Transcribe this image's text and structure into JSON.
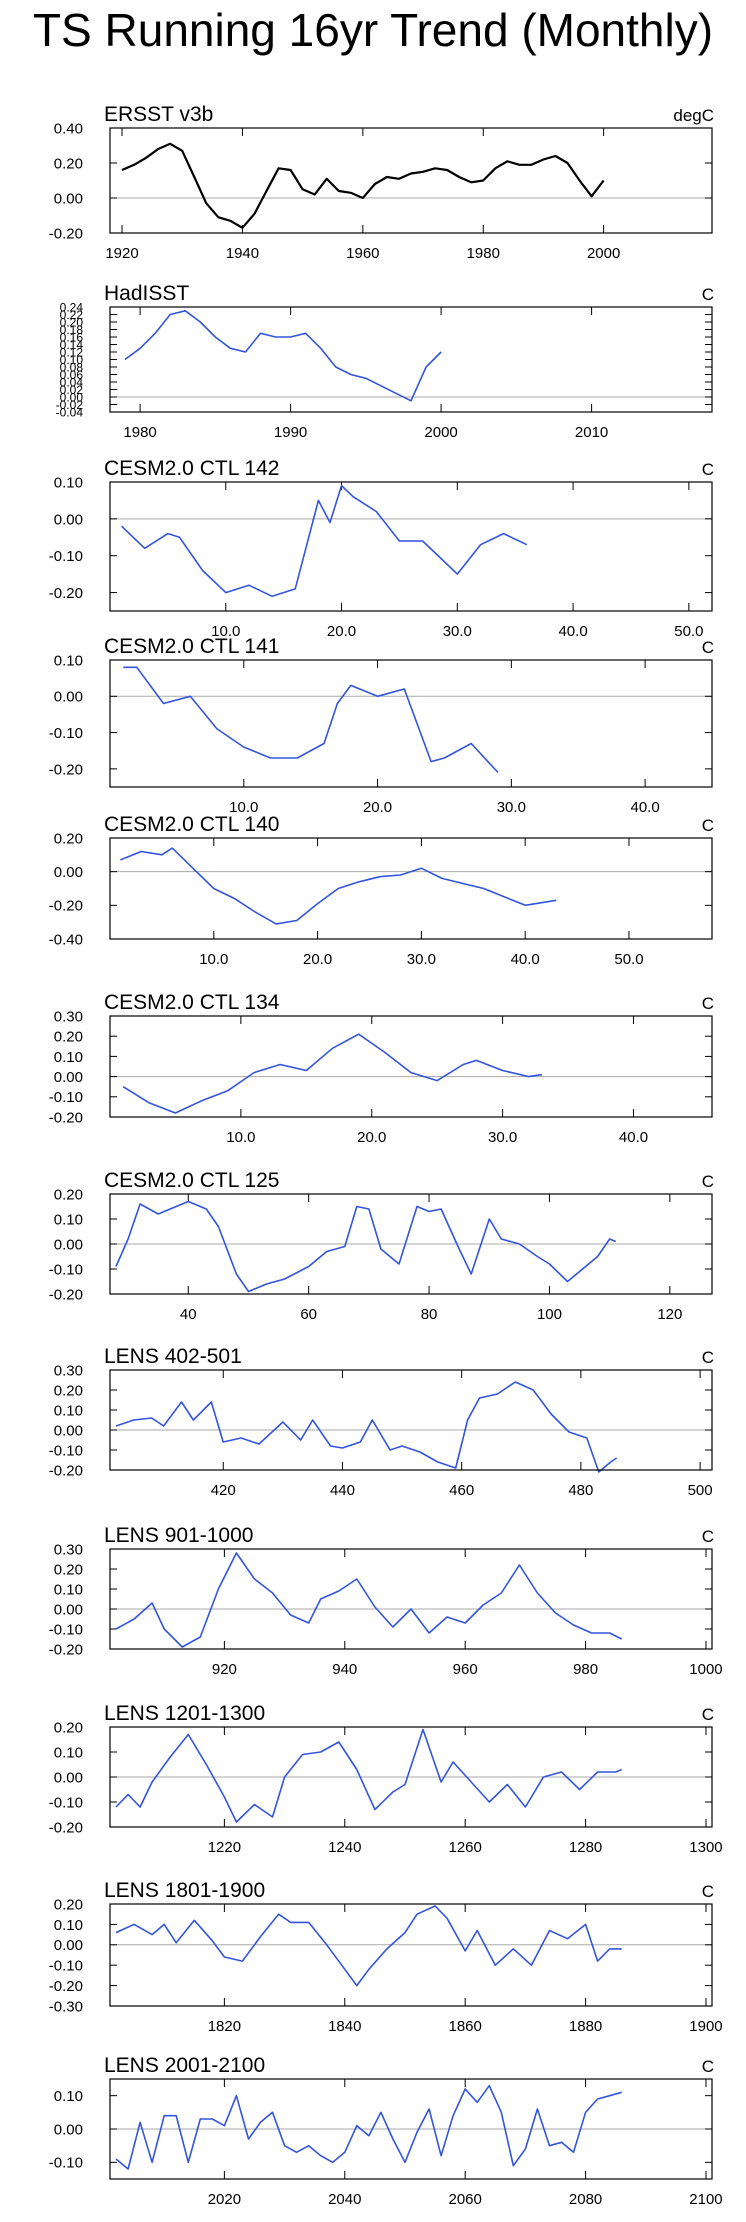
{
  "title": "TS Running 16yr Trend (Monthly)",
  "colors": {
    "observed": "#000000",
    "model": "#3355dd",
    "zero_line": "#aaaaaa",
    "axis": "#000000"
  },
  "chart_data": [
    {
      "type": "line",
      "title": "ERSST v3b",
      "units": "degC",
      "color_key": "observed",
      "xlim": [
        1918,
        2018
      ],
      "ylim": [
        -0.2,
        0.4
      ],
      "xticks": [
        1920,
        1940,
        1960,
        1980,
        2000
      ],
      "xtick_labels": [
        "1920",
        "1940",
        "1960",
        "1980",
        "2000"
      ],
      "yticks": [
        -0.2,
        0.0,
        0.2,
        0.4
      ],
      "ytick_labels": [
        "-0.20",
        "0.00",
        "0.20",
        "0.40"
      ],
      "x": [
        1920,
        1922,
        1924,
        1926,
        1928,
        1930,
        1932,
        1934,
        1936,
        1938,
        1940,
        1942,
        1944,
        1946,
        1948,
        1950,
        1952,
        1954,
        1956,
        1958,
        1960,
        1962,
        1964,
        1966,
        1968,
        1970,
        1972,
        1974,
        1976,
        1978,
        1980,
        1982,
        1984,
        1986,
        1988,
        1990,
        1992,
        1994,
        1996,
        1998,
        2000
      ],
      "y": [
        0.16,
        0.19,
        0.23,
        0.28,
        0.31,
        0.27,
        0.12,
        -0.03,
        -0.11,
        -0.13,
        -0.17,
        -0.09,
        0.04,
        0.17,
        0.16,
        0.05,
        0.02,
        0.11,
        0.04,
        0.03,
        0.0,
        0.08,
        0.12,
        0.11,
        0.14,
        0.15,
        0.17,
        0.16,
        0.12,
        0.09,
        0.1,
        0.17,
        0.21,
        0.19,
        0.19,
        0.22,
        0.24,
        0.2,
        0.1,
        0.01,
        0.1
      ]
    },
    {
      "type": "line",
      "title": "HadISST",
      "units": "C",
      "color_key": "model",
      "xlim": [
        1978,
        2018
      ],
      "ylim": [
        -0.04,
        0.24
      ],
      "xticks": [
        1980,
        1990,
        2000,
        2010
      ],
      "xtick_labels": [
        "1980",
        "1990",
        "2000",
        "2010"
      ],
      "yticks": [
        -0.04,
        -0.02,
        0.0,
        0.02,
        0.04,
        0.06,
        0.08,
        0.1,
        0.12,
        0.14,
        0.16,
        0.18,
        0.2,
        0.22,
        0.24
      ],
      "ytick_labels": [
        "-0.04",
        "-0.02",
        "0.00",
        "0.02",
        "0.04",
        "0.06",
        "0.08",
        "0.10",
        "0.12",
        "0.14",
        "0.16",
        "0.18",
        "0.20",
        "0.22",
        "0.24"
      ],
      "x": [
        1979,
        1980,
        1981,
        1982,
        1983,
        1984,
        1985,
        1986,
        1987,
        1988,
        1989,
        1990,
        1991,
        1992,
        1993,
        1994,
        1995,
        1996,
        1997,
        1998,
        1999,
        2000
      ],
      "y": [
        0.1,
        0.13,
        0.17,
        0.22,
        0.23,
        0.2,
        0.16,
        0.13,
        0.12,
        0.17,
        0.16,
        0.16,
        0.17,
        0.13,
        0.08,
        0.06,
        0.05,
        0.03,
        0.01,
        -0.01,
        0.08,
        0.12
      ]
    },
    {
      "type": "line",
      "title": "CESM2.0 CTL 142",
      "units": "C",
      "color_key": "model",
      "xlim": [
        0,
        52
      ],
      "ylim": [
        -0.25,
        0.1
      ],
      "xticks": [
        10,
        20,
        30,
        40,
        50
      ],
      "xtick_labels": [
        "10.0",
        "20.0",
        "30.0",
        "40.0",
        "50.0"
      ],
      "yticks": [
        -0.2,
        -0.1,
        0.0,
        0.1
      ],
      "ytick_labels": [
        "-0.20",
        "-0.10",
        "0.00",
        "0.10"
      ],
      "x": [
        1,
        3,
        5,
        6,
        8,
        10,
        12,
        14,
        16,
        18,
        19,
        20,
        21,
        23,
        25,
        27,
        28,
        30,
        32,
        34,
        36
      ],
      "y": [
        -0.02,
        -0.08,
        -0.04,
        -0.05,
        -0.14,
        -0.2,
        -0.18,
        -0.21,
        -0.19,
        0.05,
        -0.01,
        0.09,
        0.06,
        0.02,
        -0.06,
        -0.06,
        -0.09,
        -0.15,
        -0.07,
        -0.04,
        -0.07
      ]
    },
    {
      "type": "line",
      "title": "CESM2.0 CTL 141",
      "units": "C",
      "color_key": "model",
      "xlim": [
        0,
        45
      ],
      "ylim": [
        -0.25,
        0.1
      ],
      "xticks": [
        10,
        20,
        30,
        40
      ],
      "xtick_labels": [
        "10.0",
        "20.0",
        "30.0",
        "40.0"
      ],
      "yticks": [
        -0.2,
        -0.1,
        0.0,
        0.1
      ],
      "ytick_labels": [
        "-0.20",
        "-0.10",
        "0.00",
        "0.10"
      ],
      "x": [
        1,
        2,
        4,
        6,
        8,
        10,
        12,
        14,
        16,
        17,
        18,
        20,
        22,
        24,
        25,
        27,
        29
      ],
      "y": [
        0.08,
        0.08,
        -0.02,
        0.0,
        -0.09,
        -0.14,
        -0.17,
        -0.17,
        -0.13,
        -0.02,
        0.03,
        0.0,
        0.02,
        -0.18,
        -0.17,
        -0.13,
        -0.21
      ]
    },
    {
      "type": "line",
      "title": "CESM2.0 CTL 140",
      "units": "C",
      "color_key": "model",
      "xlim": [
        0,
        58
      ],
      "ylim": [
        -0.4,
        0.2
      ],
      "xticks": [
        10,
        20,
        30,
        40,
        50
      ],
      "xtick_labels": [
        "10.0",
        "20.0",
        "30.0",
        "40.0",
        "50.0"
      ],
      "yticks": [
        -0.4,
        -0.2,
        0.0,
        0.2
      ],
      "ytick_labels": [
        "-0.40",
        "-0.20",
        "0.00",
        "0.20"
      ],
      "x": [
        1,
        3,
        5,
        6,
        8,
        10,
        12,
        14,
        16,
        18,
        20,
        22,
        24,
        26,
        28,
        30,
        32,
        34,
        36,
        38,
        40,
        43
      ],
      "y": [
        0.07,
        0.12,
        0.1,
        0.14,
        0.02,
        -0.1,
        -0.16,
        -0.24,
        -0.31,
        -0.29,
        -0.19,
        -0.1,
        -0.06,
        -0.03,
        -0.02,
        0.02,
        -0.04,
        -0.07,
        -0.1,
        -0.15,
        -0.2,
        -0.17
      ]
    },
    {
      "type": "line",
      "title": "CESM2.0 CTL 134",
      "units": "C",
      "color_key": "model",
      "xlim": [
        0,
        46
      ],
      "ylim": [
        -0.2,
        0.3
      ],
      "xticks": [
        10,
        20,
        30,
        40
      ],
      "xtick_labels": [
        "10.0",
        "20.0",
        "30.0",
        "40.0"
      ],
      "yticks": [
        -0.2,
        -0.1,
        0.0,
        0.1,
        0.2,
        0.3
      ],
      "ytick_labels": [
        "-0.20",
        "-0.10",
        "0.00",
        "0.10",
        "0.20",
        "0.30"
      ],
      "x": [
        1,
        3,
        5,
        7,
        9,
        11,
        13,
        15,
        17,
        19,
        21,
        23,
        25,
        27,
        28,
        30,
        32,
        33
      ],
      "y": [
        -0.05,
        -0.13,
        -0.18,
        -0.12,
        -0.07,
        0.02,
        0.06,
        0.03,
        0.14,
        0.21,
        0.12,
        0.02,
        -0.02,
        0.06,
        0.08,
        0.03,
        0.0,
        0.01
      ]
    },
    {
      "type": "line",
      "title": "CESM2.0 CTL 125",
      "units": "C",
      "color_key": "model",
      "xlim": [
        27,
        127
      ],
      "ylim": [
        -0.2,
        0.2
      ],
      "xticks": [
        40,
        60,
        80,
        100,
        120
      ],
      "xtick_labels": [
        "40",
        "60",
        "80",
        "100",
        "120"
      ],
      "yticks": [
        -0.2,
        -0.1,
        0.0,
        0.1,
        0.2
      ],
      "ytick_labels": [
        "-0.20",
        "-0.10",
        "0.00",
        "0.10",
        "0.20"
      ],
      "x": [
        28,
        30,
        32,
        35,
        38,
        40,
        43,
        45,
        48,
        50,
        53,
        56,
        60,
        63,
        66,
        68,
        70,
        72,
        75,
        78,
        80,
        82,
        85,
        87,
        90,
        92,
        95,
        98,
        100,
        103,
        105,
        108,
        110,
        111
      ],
      "y": [
        -0.09,
        0.02,
        0.16,
        0.12,
        0.15,
        0.17,
        0.14,
        0.07,
        -0.12,
        -0.19,
        -0.16,
        -0.14,
        -0.09,
        -0.03,
        -0.01,
        0.15,
        0.14,
        -0.02,
        -0.08,
        0.15,
        0.13,
        0.14,
        -0.02,
        -0.12,
        0.1,
        0.02,
        0.0,
        -0.05,
        -0.08,
        -0.15,
        -0.11,
        -0.05,
        0.02,
        0.01
      ]
    },
    {
      "type": "line",
      "title": "LENS 402-501",
      "units": "C",
      "color_key": "model",
      "xlim": [
        401,
        502
      ],
      "ylim": [
        -0.2,
        0.3
      ],
      "xticks": [
        420,
        440,
        460,
        480,
        500
      ],
      "xtick_labels": [
        "420",
        "440",
        "460",
        "480",
        "500"
      ],
      "yticks": [
        -0.2,
        -0.1,
        0.0,
        0.1,
        0.2,
        0.3
      ],
      "ytick_labels": [
        "-0.20",
        "-0.10",
        "0.00",
        "0.10",
        "0.20",
        "0.30"
      ],
      "x": [
        402,
        405,
        408,
        410,
        413,
        415,
        418,
        420,
        423,
        426,
        430,
        433,
        435,
        438,
        440,
        443,
        445,
        448,
        450,
        453,
        456,
        459,
        461,
        463,
        466,
        469,
        472,
        475,
        478,
        481,
        483,
        485,
        486
      ],
      "y": [
        0.02,
        0.05,
        0.06,
        0.02,
        0.14,
        0.05,
        0.14,
        -0.06,
        -0.04,
        -0.07,
        0.04,
        -0.05,
        0.05,
        -0.08,
        -0.09,
        -0.06,
        0.05,
        -0.1,
        -0.08,
        -0.11,
        -0.16,
        -0.19,
        0.05,
        0.16,
        0.18,
        0.24,
        0.2,
        0.08,
        -0.01,
        -0.04,
        -0.21,
        -0.16,
        -0.14
      ]
    },
    {
      "type": "line",
      "title": "LENS 901-1000",
      "units": "C",
      "color_key": "model",
      "xlim": [
        901,
        1001
      ],
      "ylim": [
        -0.2,
        0.3
      ],
      "xticks": [
        920,
        940,
        960,
        980,
        1000
      ],
      "xtick_labels": [
        "920",
        "940",
        "960",
        "980",
        "1000"
      ],
      "yticks": [
        -0.2,
        -0.1,
        0.0,
        0.1,
        0.2,
        0.3
      ],
      "ytick_labels": [
        "-0.20",
        "-0.10",
        "0.00",
        "0.10",
        "0.20",
        "0.30"
      ],
      "x": [
        902,
        905,
        908,
        910,
        913,
        916,
        919,
        922,
        925,
        928,
        931,
        934,
        936,
        939,
        942,
        945,
        948,
        951,
        954,
        957,
        960,
        963,
        966,
        969,
        972,
        975,
        978,
        981,
        984,
        986
      ],
      "y": [
        -0.1,
        -0.05,
        0.03,
        -0.1,
        -0.19,
        -0.14,
        0.1,
        0.28,
        0.15,
        0.08,
        -0.03,
        -0.07,
        0.05,
        0.09,
        0.15,
        0.01,
        -0.09,
        0.0,
        -0.12,
        -0.04,
        -0.07,
        0.02,
        0.08,
        0.22,
        0.08,
        -0.02,
        -0.08,
        -0.12,
        -0.12,
        -0.15
      ]
    },
    {
      "type": "line",
      "title": "LENS 1201-1300",
      "units": "C",
      "color_key": "model",
      "xlim": [
        1201,
        1301
      ],
      "ylim": [
        -0.2,
        0.2
      ],
      "xticks": [
        1220,
        1240,
        1260,
        1280,
        1300
      ],
      "xtick_labels": [
        "1220",
        "1240",
        "1260",
        "1280",
        "1300"
      ],
      "yticks": [
        -0.2,
        -0.1,
        0.0,
        0.1,
        0.2
      ],
      "ytick_labels": [
        "-0.20",
        "-0.10",
        "0.00",
        "0.10",
        "0.20"
      ],
      "x": [
        1202,
        1204,
        1206,
        1208,
        1211,
        1214,
        1217,
        1220,
        1222,
        1225,
        1228,
        1230,
        1233,
        1236,
        1239,
        1242,
        1245,
        1248,
        1250,
        1253,
        1256,
        1258,
        1261,
        1264,
        1267,
        1270,
        1273,
        1276,
        1279,
        1282,
        1285,
        1286
      ],
      "y": [
        -0.12,
        -0.07,
        -0.12,
        -0.02,
        0.08,
        0.17,
        0.05,
        -0.08,
        -0.18,
        -0.11,
        -0.16,
        0.0,
        0.09,
        0.1,
        0.14,
        0.03,
        -0.13,
        -0.06,
        -0.03,
        0.19,
        -0.02,
        0.06,
        -0.02,
        -0.1,
        -0.03,
        -0.12,
        0.0,
        0.02,
        -0.05,
        0.02,
        0.02,
        0.03
      ]
    },
    {
      "type": "line",
      "title": "LENS 1801-1900",
      "units": "C",
      "color_key": "model",
      "xlim": [
        1801,
        1901
      ],
      "ylim": [
        -0.3,
        0.2
      ],
      "xticks": [
        1820,
        1840,
        1860,
        1880,
        1900
      ],
      "xtick_labels": [
        "1820",
        "1840",
        "1860",
        "1880",
        "1900"
      ],
      "yticks": [
        -0.3,
        -0.2,
        -0.1,
        0.0,
        0.1,
        0.2
      ],
      "ytick_labels": [
        "-0.30",
        "-0.20",
        "-0.10",
        "0.00",
        "0.10",
        "0.20"
      ],
      "x": [
        1802,
        1805,
        1808,
        1810,
        1812,
        1815,
        1818,
        1820,
        1823,
        1826,
        1829,
        1831,
        1834,
        1837,
        1840,
        1842,
        1844,
        1847,
        1850,
        1852,
        1855,
        1857,
        1860,
        1862,
        1865,
        1868,
        1871,
        1874,
        1877,
        1880,
        1882,
        1884,
        1886
      ],
      "y": [
        0.06,
        0.1,
        0.05,
        0.1,
        0.01,
        0.12,
        0.02,
        -0.06,
        -0.08,
        0.04,
        0.15,
        0.11,
        0.11,
        0.0,
        -0.12,
        -0.2,
        -0.12,
        -0.02,
        0.06,
        0.15,
        0.19,
        0.13,
        -0.03,
        0.07,
        -0.1,
        -0.02,
        -0.1,
        0.07,
        0.03,
        0.1,
        -0.08,
        -0.02,
        -0.02
      ]
    },
    {
      "type": "line",
      "title": "LENS 2001-2100",
      "units": "C",
      "color_key": "model",
      "xlim": [
        2001,
        2101
      ],
      "ylim": [
        -0.15,
        0.15
      ],
      "xticks": [
        2020,
        2040,
        2060,
        2080,
        2100
      ],
      "xtick_labels": [
        "2020",
        "2040",
        "2060",
        "2080",
        "2100"
      ],
      "yticks": [
        -0.1,
        0.0,
        0.1
      ],
      "ytick_labels": [
        "-0.10",
        "0.00",
        "0.10"
      ],
      "x": [
        2002,
        2004,
        2006,
        2008,
        2010,
        2012,
        2014,
        2016,
        2018,
        2020,
        2022,
        2024,
        2026,
        2028,
        2030,
        2032,
        2034,
        2036,
        2038,
        2040,
        2042,
        2044,
        2046,
        2048,
        2050,
        2052,
        2054,
        2056,
        2058,
        2060,
        2062,
        2064,
        2066,
        2068,
        2070,
        2072,
        2074,
        2076,
        2078,
        2080,
        2082,
        2084,
        2086
      ],
      "y": [
        -0.09,
        -0.12,
        0.02,
        -0.1,
        0.04,
        0.04,
        -0.1,
        0.03,
        0.03,
        0.01,
        0.1,
        -0.03,
        0.02,
        0.05,
        -0.05,
        -0.07,
        -0.05,
        -0.08,
        -0.1,
        -0.07,
        0.01,
        -0.02,
        0.05,
        -0.03,
        -0.1,
        -0.01,
        0.06,
        -0.08,
        0.04,
        0.12,
        0.08,
        0.13,
        0.05,
        -0.11,
        -0.06,
        0.06,
        -0.05,
        -0.04,
        -0.07,
        0.05,
        0.09,
        0.1,
        0.11
      ]
    }
  ]
}
